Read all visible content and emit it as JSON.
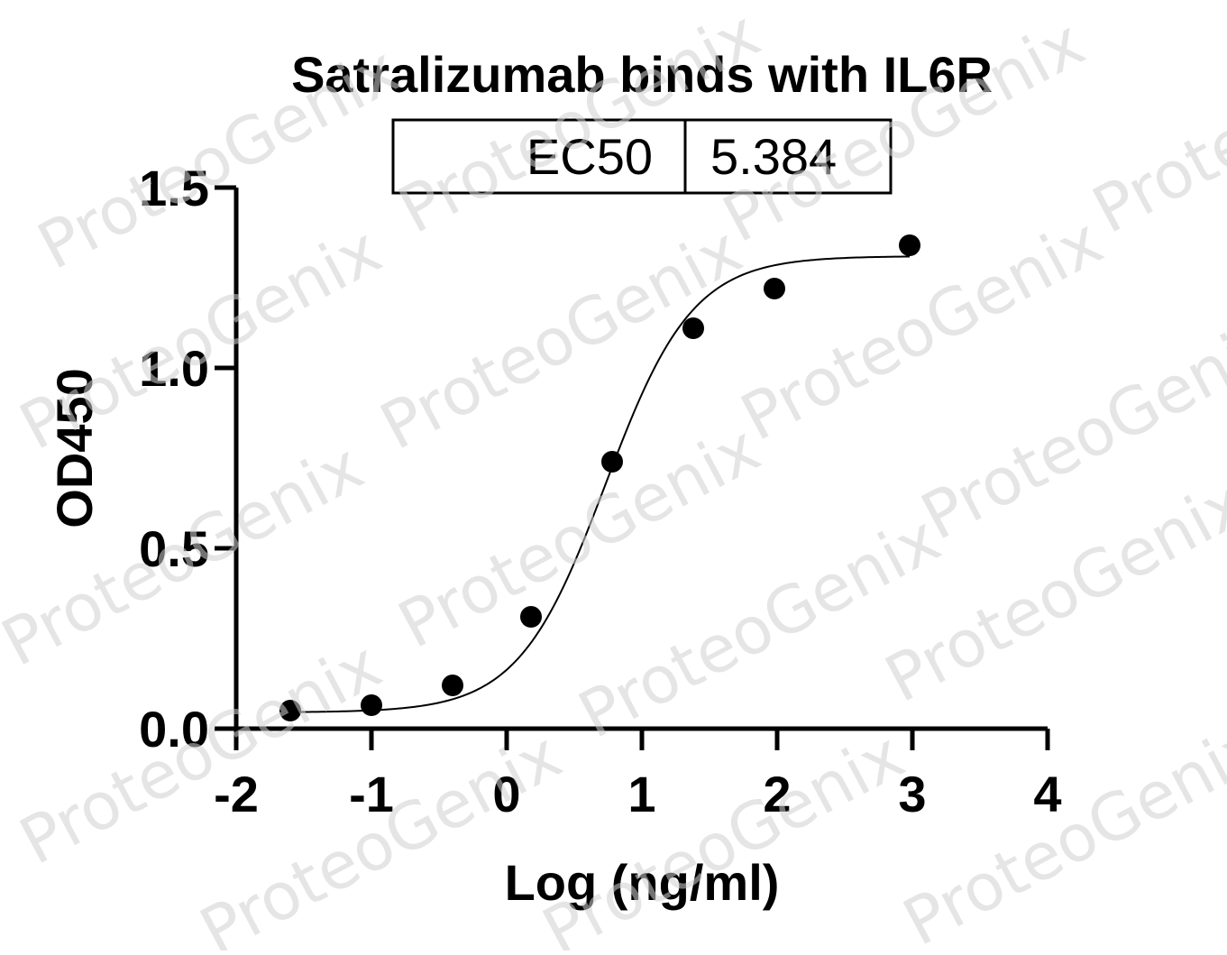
{
  "watermark": "ProteoGenix",
  "colors": {
    "line": "#000000",
    "points": "#000000",
    "watermark": "#d0d0d0"
  },
  "chart_data": {
    "type": "scatter",
    "title": "Satralizumab binds with IL6R",
    "xlabel": "Log (ng/ml)",
    "ylabel": "OD450",
    "xlim": [
      -2,
      4
    ],
    "ylim": [
      0,
      1.5
    ],
    "x_ticks": [
      -2,
      -1,
      0,
      1,
      2,
      3,
      4
    ],
    "x_tick_labels": [
      "-2",
      "-1",
      "0",
      "1",
      "2",
      "3",
      "4"
    ],
    "y_ticks": [
      0,
      0.5,
      1.0,
      1.5
    ],
    "y_tick_labels": [
      "0.0",
      "0.5",
      "1.0",
      "1.5"
    ],
    "grid": false,
    "legend": "none",
    "ec50_table": {
      "label": "EC50",
      "value": "5.384"
    },
    "series": [
      {
        "points": [
          {
            "x": -1.6,
            "y": 0.05
          },
          {
            "x": -1.0,
            "y": 0.065
          },
          {
            "x": -0.4,
            "y": 0.12
          },
          {
            "x": 0.18,
            "y": 0.31
          },
          {
            "x": 0.78,
            "y": 0.74
          },
          {
            "x": 1.38,
            "y": 1.11
          },
          {
            "x": 1.98,
            "y": 1.22
          },
          {
            "x": 2.98,
            "y": 1.34
          }
        ]
      }
    ],
    "fit": {
      "model": "4PL",
      "bottom": 0.045,
      "top": 1.31,
      "log_ec50": 0.731,
      "hill": 1.35,
      "x_range": [
        -1.6,
        2.98
      ]
    }
  }
}
